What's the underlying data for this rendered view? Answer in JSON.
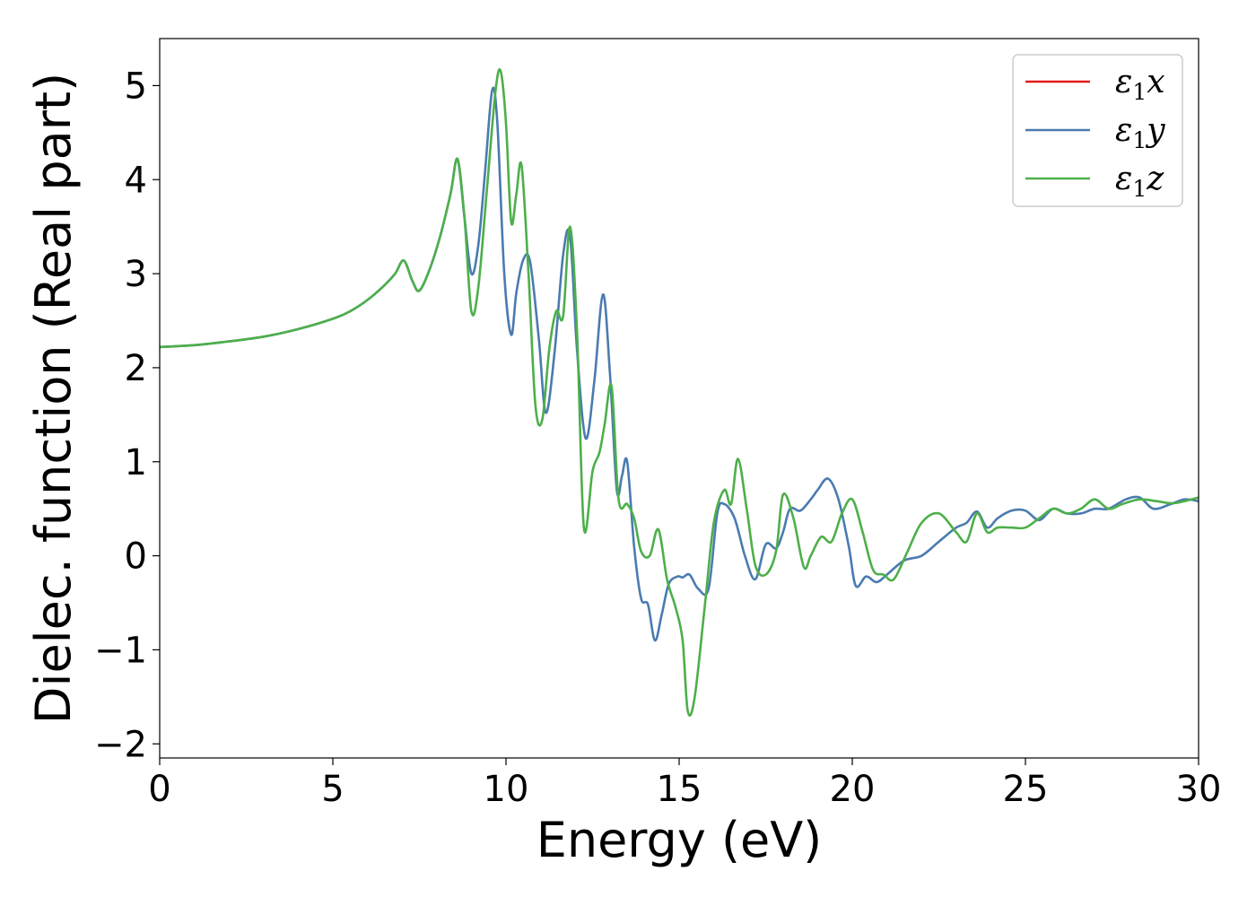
{
  "chart_data": {
    "type": "line",
    "title": "",
    "xlabel": "Energy (eV)",
    "ylabel": "Dielec. function (Real part)",
    "xlim": [
      0,
      30
    ],
    "ylim": [
      -2.15,
      5.5
    ],
    "xticks": [
      0,
      5,
      10,
      15,
      20,
      25,
      30
    ],
    "xtick_labels": [
      "0",
      "5",
      "10",
      "15",
      "20",
      "25",
      "30"
    ],
    "yticks": [
      -2,
      -1,
      0,
      1,
      2,
      3,
      4,
      5
    ],
    "ytick_labels": [
      "−2",
      "−1",
      "0",
      "1",
      "2",
      "3",
      "4",
      "5"
    ],
    "grid": false,
    "legend": {
      "position": "top-right",
      "entries": [
        {
          "base": "ε",
          "sub": "1",
          "tail": "x",
          "color": "#e41a1c"
        },
        {
          "base": "ε",
          "sub": "1",
          "tail": "y",
          "color": "#4a7bb0"
        },
        {
          "base": "ε",
          "sub": "1",
          "tail": "z",
          "color": "#4daf4a"
        }
      ]
    },
    "series": [
      {
        "id": "e1y",
        "color": "#4a7bb0",
        "x": [
          0,
          1,
          2,
          3,
          4,
          5,
          5.5,
          6,
          6.5,
          6.8,
          7.05,
          7.3,
          7.5,
          7.8,
          8.1,
          8.4,
          8.6,
          8.8,
          9.0,
          9.2,
          9.4,
          9.6,
          9.75,
          9.95,
          10.15,
          10.3,
          10.5,
          10.7,
          10.95,
          11.15,
          11.4,
          11.65,
          11.85,
          12.05,
          12.3,
          12.55,
          12.8,
          13.0,
          13.2,
          13.35,
          13.5,
          13.7,
          13.9,
          14.1,
          14.3,
          14.5,
          14.7,
          14.95,
          15.1,
          15.3,
          15.55,
          15.85,
          16.1,
          16.3,
          16.6,
          16.9,
          17.2,
          17.5,
          17.8,
          18.0,
          18.2,
          18.5,
          18.8,
          19.0,
          19.3,
          19.6,
          19.9,
          20.1,
          20.4,
          20.7,
          21.0,
          21.5,
          22.0,
          22.5,
          23.0,
          23.3,
          23.6,
          23.9,
          24.2,
          24.6,
          25.0,
          25.4,
          25.8,
          26.2,
          26.6,
          27.0,
          27.4,
          27.9,
          28.3,
          28.7,
          29.2,
          29.6,
          30.0
        ],
        "y": [
          2.22,
          2.24,
          2.28,
          2.33,
          2.41,
          2.52,
          2.6,
          2.72,
          2.88,
          3.0,
          3.14,
          2.92,
          2.82,
          3.05,
          3.4,
          3.85,
          4.22,
          3.6,
          3.0,
          3.3,
          4.1,
          4.95,
          4.6,
          3.0,
          2.35,
          2.8,
          3.15,
          3.12,
          2.3,
          1.52,
          2.15,
          3.2,
          3.4,
          2.2,
          1.25,
          1.85,
          2.78,
          1.95,
          0.7,
          0.85,
          1.0,
          0.1,
          -0.45,
          -0.52,
          -0.9,
          -0.62,
          -0.3,
          -0.22,
          -0.23,
          -0.2,
          -0.35,
          -0.35,
          0.45,
          0.55,
          0.4,
          0.0,
          -0.25,
          0.12,
          0.08,
          0.25,
          0.5,
          0.48,
          0.6,
          0.7,
          0.82,
          0.6,
          0.1,
          -0.32,
          -0.22,
          -0.28,
          -0.2,
          -0.05,
          0.0,
          0.15,
          0.3,
          0.35,
          0.47,
          0.3,
          0.4,
          0.48,
          0.48,
          0.38,
          0.5,
          0.45,
          0.45,
          0.5,
          0.5,
          0.6,
          0.62,
          0.5,
          0.55,
          0.6,
          0.58
        ]
      },
      {
        "id": "e1z",
        "color": "#4daf4a",
        "x": [
          0,
          1,
          2,
          3,
          4,
          5,
          5.5,
          6,
          6.5,
          6.8,
          7.05,
          7.3,
          7.5,
          7.8,
          8.1,
          8.4,
          8.6,
          8.8,
          9.0,
          9.2,
          9.45,
          9.7,
          9.85,
          10.0,
          10.15,
          10.3,
          10.45,
          10.65,
          10.85,
          11.05,
          11.25,
          11.45,
          11.65,
          11.85,
          12.05,
          12.25,
          12.5,
          12.7,
          12.85,
          13.05,
          13.25,
          13.5,
          13.7,
          13.9,
          14.15,
          14.4,
          14.65,
          14.9,
          15.1,
          15.25,
          15.45,
          15.75,
          16.0,
          16.3,
          16.5,
          16.7,
          16.95,
          17.2,
          17.5,
          17.8,
          18.0,
          18.3,
          18.6,
          18.8,
          19.1,
          19.4,
          19.7,
          20.0,
          20.3,
          20.6,
          20.9,
          21.2,
          21.6,
          22.0,
          22.5,
          23.0,
          23.3,
          23.6,
          23.9,
          24.2,
          24.6,
          25.0,
          25.4,
          25.8,
          26.2,
          26.6,
          27.0,
          27.4,
          27.8,
          28.3,
          28.8,
          29.3,
          30.0
        ],
        "y": [
          2.22,
          2.24,
          2.28,
          2.33,
          2.41,
          2.52,
          2.6,
          2.72,
          2.88,
          3.0,
          3.14,
          2.92,
          2.82,
          3.05,
          3.4,
          3.85,
          4.22,
          3.6,
          2.6,
          2.85,
          3.9,
          4.95,
          5.15,
          4.6,
          3.55,
          3.85,
          4.15,
          3.0,
          1.6,
          1.45,
          2.2,
          2.6,
          2.55,
          3.5,
          2.4,
          0.3,
          0.9,
          1.1,
          1.4,
          1.8,
          0.6,
          0.55,
          0.4,
          0.05,
          0.0,
          0.28,
          -0.25,
          -0.55,
          -0.9,
          -1.65,
          -1.5,
          -0.5,
          0.35,
          0.7,
          0.55,
          1.03,
          0.5,
          -0.1,
          -0.2,
          0.05,
          0.65,
          0.4,
          -0.12,
          0.0,
          0.2,
          0.15,
          0.45,
          0.6,
          0.25,
          -0.15,
          -0.2,
          -0.25,
          0.05,
          0.35,
          0.45,
          0.25,
          0.15,
          0.45,
          0.25,
          0.3,
          0.3,
          0.3,
          0.4,
          0.5,
          0.45,
          0.5,
          0.6,
          0.5,
          0.55,
          0.6,
          0.58,
          0.56,
          0.62
        ]
      }
    ]
  }
}
